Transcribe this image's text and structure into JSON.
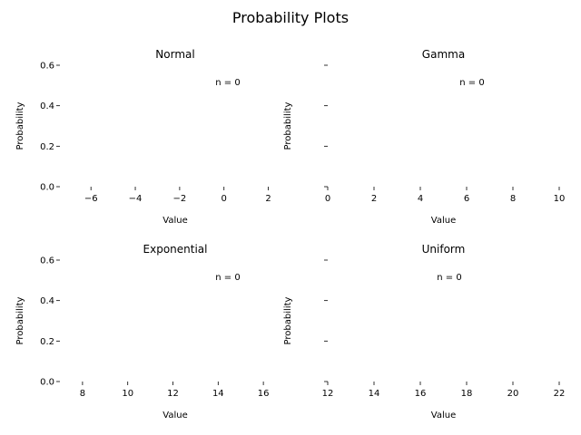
{
  "figure": {
    "title": "Probability Plots"
  },
  "chart_data": [
    {
      "type": "bar",
      "title": "Normal",
      "xlabel": "Value",
      "ylabel": "Probability",
      "xlim": [
        -7.4,
        3.0
      ],
      "ylim": [
        0.0,
        0.6
      ],
      "xticks": [
        -6,
        -4,
        -2,
        0,
        2
      ],
      "yticks": [
        0.0,
        0.2,
        0.4,
        0.6
      ],
      "show_yticklabels": true,
      "annotation": "n = 0",
      "grid": false,
      "series": []
    },
    {
      "type": "bar",
      "title": "Gamma",
      "xlabel": "Value",
      "ylabel": "Probability",
      "xlim": [
        0,
        10
      ],
      "ylim": [
        0.0,
        0.6
      ],
      "xticks": [
        0,
        2,
        4,
        6,
        8,
        10
      ],
      "yticks": [
        0.0,
        0.2,
        0.4,
        0.6
      ],
      "show_yticklabels": false,
      "annotation": "n = 0",
      "grid": false,
      "series": []
    },
    {
      "type": "bar",
      "title": "Exponential",
      "xlabel": "Value",
      "ylabel": "Probability",
      "xlim": [
        7.0,
        17.2
      ],
      "ylim": [
        0.0,
        0.6
      ],
      "xticks": [
        8,
        10,
        12,
        14,
        16
      ],
      "yticks": [
        0.0,
        0.2,
        0.4,
        0.6
      ],
      "show_yticklabels": true,
      "annotation": "n = 0",
      "grid": false,
      "series": []
    },
    {
      "type": "bar",
      "title": "Uniform",
      "xlabel": "Value",
      "ylabel": "Probability",
      "xlim": [
        12,
        22
      ],
      "ylim": [
        0.0,
        0.6
      ],
      "xticks": [
        12,
        14,
        16,
        18,
        20,
        22
      ],
      "yticks": [
        0.0,
        0.2,
        0.4,
        0.6
      ],
      "show_yticklabels": false,
      "annotation": "n = 0",
      "grid": false,
      "series": []
    }
  ]
}
